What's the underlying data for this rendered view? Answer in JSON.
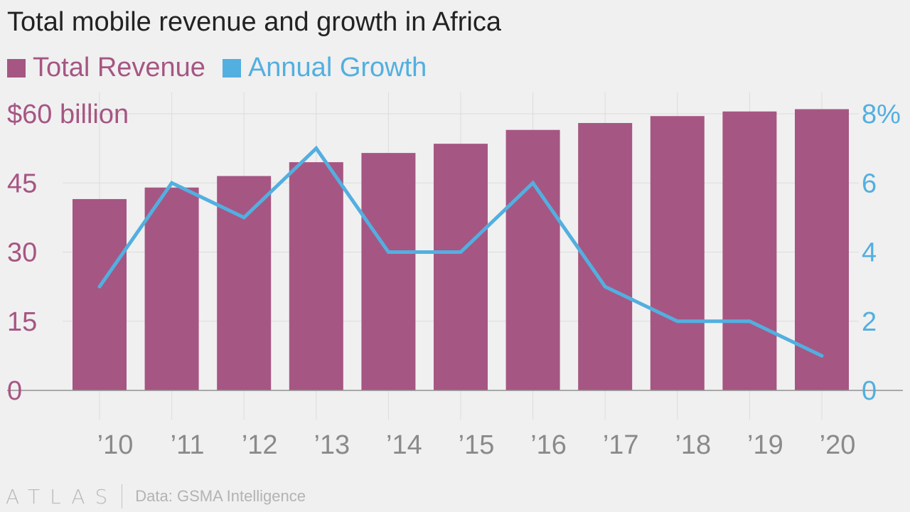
{
  "chart_data": {
    "type": "bar",
    "title": "Total mobile revenue and growth in Africa",
    "categories": [
      "’10",
      "’11",
      "’12",
      "’13",
      "’14",
      "’15",
      "’16",
      "’17",
      "’18",
      "’19",
      "’20"
    ],
    "series": [
      {
        "name": "Total Revenue",
        "type": "bar",
        "axis": "left",
        "color": "#a65683",
        "values": [
          41.5,
          44,
          46.5,
          49.5,
          51.5,
          53.5,
          56.5,
          58,
          59.5,
          60.5,
          61
        ]
      },
      {
        "name": "Annual Growth",
        "type": "line",
        "axis": "right",
        "color": "#52afe0",
        "values": [
          3,
          6,
          5,
          7,
          4,
          4,
          6,
          3,
          2,
          2,
          1
        ]
      }
    ],
    "y_left": {
      "min": 0,
      "max": 60,
      "ticks": [
        "0",
        "15",
        "30",
        "45",
        "$60 billion"
      ],
      "tick_values": [
        0,
        15,
        30,
        45,
        60
      ]
    },
    "y_right": {
      "min": 0,
      "max": 8,
      "ticks": [
        "0",
        "2",
        "4",
        "6",
        "8%"
      ],
      "tick_values": [
        0,
        2,
        4,
        6,
        8
      ]
    },
    "grid": true,
    "legend_position": "top-left"
  },
  "footer": {
    "brand": "ATLAS",
    "source": "Data: GSMA Intelligence"
  }
}
